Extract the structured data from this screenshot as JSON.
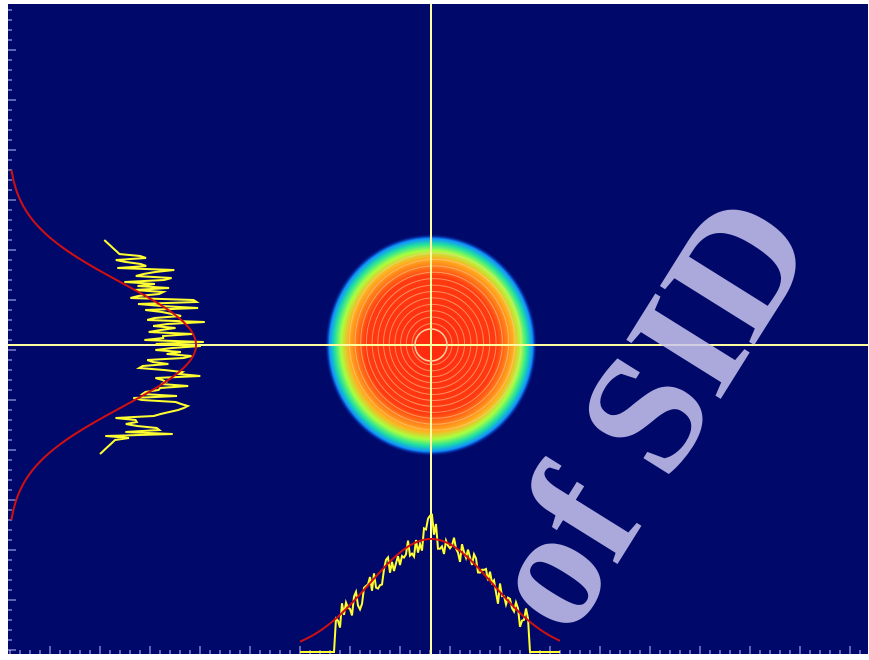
{
  "watermark": "of SID"
}
